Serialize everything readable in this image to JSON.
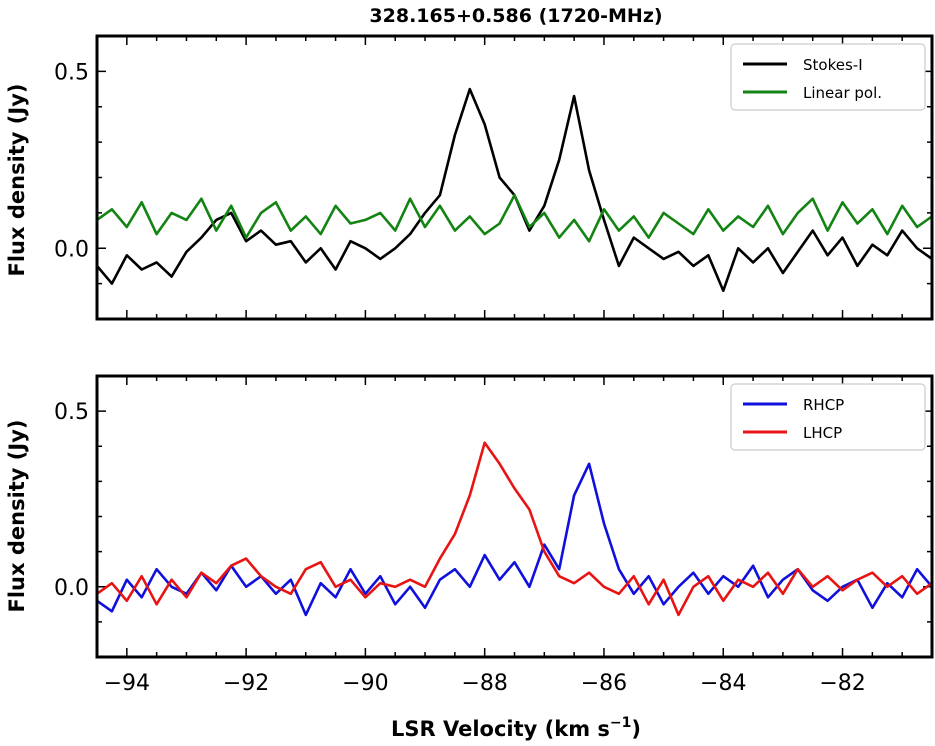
{
  "figure": {
    "title": "328.165+0.586 (1720-MHz)",
    "xlabel": "LSR Velocity (km s",
    "xlabel_sup": "−1",
    "xlabel_close": ")"
  },
  "chart_data": [
    {
      "type": "line",
      "ylabel": "Flux density (Jy)",
      "xlim": [
        -94.5,
        -80.5
      ],
      "ylim": [
        -0.2,
        0.6
      ],
      "yticks": [
        0.0,
        0.5
      ],
      "ytick_labels": [
        "0.0",
        "0.5"
      ],
      "legend_position": "top-right",
      "series": [
        {
          "name": "Stokes-I",
          "color": "#000000",
          "x": [
            -94.5,
            -94.25,
            -94.0,
            -93.75,
            -93.5,
            -93.25,
            -93.0,
            -92.75,
            -92.5,
            -92.25,
            -92.0,
            -91.75,
            -91.5,
            -91.25,
            -91.0,
            -90.75,
            -90.5,
            -90.25,
            -90.0,
            -89.75,
            -89.5,
            -89.25,
            -89.0,
            -88.75,
            -88.5,
            -88.25,
            -88.0,
            -87.75,
            -87.5,
            -87.25,
            -87.0,
            -86.75,
            -86.5,
            -86.25,
            -86.0,
            -85.75,
            -85.5,
            -85.25,
            -85.0,
            -84.75,
            -84.5,
            -84.25,
            -84.0,
            -83.75,
            -83.5,
            -83.25,
            -83.0,
            -82.75,
            -82.5,
            -82.25,
            -82.0,
            -81.75,
            -81.5,
            -81.25,
            -81.0,
            -80.75,
            -80.5
          ],
          "y": [
            -0.05,
            -0.1,
            -0.02,
            -0.06,
            -0.04,
            -0.08,
            -0.01,
            0.03,
            0.08,
            0.1,
            0.02,
            0.05,
            0.01,
            0.02,
            -0.04,
            0.0,
            -0.06,
            0.02,
            0.0,
            -0.03,
            0.0,
            0.04,
            0.1,
            0.15,
            0.32,
            0.45,
            0.35,
            0.2,
            0.15,
            0.05,
            0.12,
            0.25,
            0.43,
            0.22,
            0.08,
            -0.05,
            0.03,
            0.0,
            -0.03,
            -0.01,
            -0.05,
            -0.02,
            -0.12,
            0.0,
            -0.04,
            0.0,
            -0.07,
            -0.01,
            0.05,
            -0.02,
            0.03,
            -0.05,
            0.01,
            -0.02,
            0.05,
            0.0,
            -0.03
          ]
        },
        {
          "name": "Linear pol.",
          "color": "#138413",
          "x": [
            -94.5,
            -94.25,
            -94.0,
            -93.75,
            -93.5,
            -93.25,
            -93.0,
            -92.75,
            -92.5,
            -92.25,
            -92.0,
            -91.75,
            -91.5,
            -91.25,
            -91.0,
            -90.75,
            -90.5,
            -90.25,
            -90.0,
            -89.75,
            -89.5,
            -89.25,
            -89.0,
            -88.75,
            -88.5,
            -88.25,
            -88.0,
            -87.75,
            -87.5,
            -87.25,
            -87.0,
            -86.75,
            -86.5,
            -86.25,
            -86.0,
            -85.75,
            -85.5,
            -85.25,
            -85.0,
            -84.75,
            -84.5,
            -84.25,
            -84.0,
            -83.75,
            -83.5,
            -83.25,
            -83.0,
            -82.75,
            -82.5,
            -82.25,
            -82.0,
            -81.75,
            -81.5,
            -81.25,
            -81.0,
            -80.75,
            -80.5
          ],
          "y": [
            0.08,
            0.11,
            0.06,
            0.13,
            0.04,
            0.1,
            0.08,
            0.14,
            0.05,
            0.12,
            0.03,
            0.1,
            0.13,
            0.05,
            0.09,
            0.04,
            0.12,
            0.07,
            0.08,
            0.1,
            0.05,
            0.14,
            0.06,
            0.12,
            0.05,
            0.09,
            0.04,
            0.07,
            0.15,
            0.06,
            0.1,
            0.03,
            0.08,
            0.02,
            0.11,
            0.05,
            0.09,
            0.03,
            0.1,
            0.07,
            0.04,
            0.11,
            0.05,
            0.09,
            0.06,
            0.12,
            0.04,
            0.1,
            0.14,
            0.05,
            0.13,
            0.07,
            0.11,
            0.04,
            0.12,
            0.06,
            0.09
          ]
        }
      ]
    },
    {
      "type": "line",
      "ylabel": "Flux density (Jy)",
      "xlabel": "LSR Velocity (km s⁻¹)",
      "xlim": [
        -94.5,
        -80.5
      ],
      "ylim": [
        -0.2,
        0.6
      ],
      "xticks": [
        -94,
        -92,
        -90,
        -88,
        -86,
        -84,
        -82
      ],
      "xtick_labels": [
        "−94",
        "−92",
        "−90",
        "−88",
        "−86",
        "−84",
        "−82"
      ],
      "yticks": [
        0.0,
        0.5
      ],
      "ytick_labels": [
        "0.0",
        "0.5"
      ],
      "legend_position": "top-right",
      "series": [
        {
          "name": "RHCP",
          "color": "#1010dd",
          "x": [
            -94.5,
            -94.25,
            -94.0,
            -93.75,
            -93.5,
            -93.25,
            -93.0,
            -92.75,
            -92.5,
            -92.25,
            -92.0,
            -91.75,
            -91.5,
            -91.25,
            -91.0,
            -90.75,
            -90.5,
            -90.25,
            -90.0,
            -89.75,
            -89.5,
            -89.25,
            -89.0,
            -88.75,
            -88.5,
            -88.25,
            -88.0,
            -87.75,
            -87.5,
            -87.25,
            -87.0,
            -86.75,
            -86.5,
            -86.25,
            -86.0,
            -85.75,
            -85.5,
            -85.25,
            -85.0,
            -84.75,
            -84.5,
            -84.25,
            -84.0,
            -83.75,
            -83.5,
            -83.25,
            -83.0,
            -82.75,
            -82.5,
            -82.25,
            -82.0,
            -81.75,
            -81.5,
            -81.25,
            -81.0,
            -80.75,
            -80.5
          ],
          "y": [
            -0.04,
            -0.07,
            0.02,
            -0.03,
            0.05,
            0.0,
            -0.02,
            0.04,
            -0.01,
            0.06,
            0.0,
            0.03,
            -0.02,
            0.02,
            -0.08,
            0.01,
            -0.03,
            0.05,
            -0.02,
            0.03,
            -0.05,
            0.0,
            -0.06,
            0.02,
            0.05,
            0.0,
            0.09,
            0.02,
            0.07,
            0.0,
            0.12,
            0.05,
            0.26,
            0.35,
            0.18,
            0.05,
            -0.02,
            0.03,
            -0.05,
            0.0,
            0.04,
            -0.02,
            0.03,
            0.0,
            0.06,
            -0.03,
            0.02,
            0.05,
            -0.01,
            -0.04,
            0.0,
            0.02,
            -0.06,
            0.01,
            -0.03,
            0.05,
            0.0
          ]
        },
        {
          "name": "LHCP",
          "color": "#e81414",
          "x": [
            -94.5,
            -94.25,
            -94.0,
            -93.75,
            -93.5,
            -93.25,
            -93.0,
            -92.75,
            -92.5,
            -92.25,
            -92.0,
            -91.75,
            -91.5,
            -91.25,
            -91.0,
            -90.75,
            -90.5,
            -90.25,
            -90.0,
            -89.75,
            -89.5,
            -89.25,
            -89.0,
            -88.75,
            -88.5,
            -88.25,
            -88.0,
            -87.75,
            -87.5,
            -87.25,
            -87.0,
            -86.75,
            -86.5,
            -86.25,
            -86.0,
            -85.75,
            -85.5,
            -85.25,
            -85.0,
            -84.75,
            -84.5,
            -84.25,
            -84.0,
            -83.75,
            -83.5,
            -83.25,
            -83.0,
            -82.75,
            -82.5,
            -82.25,
            -82.0,
            -81.75,
            -81.5,
            -81.25,
            -81.0,
            -80.75,
            -80.5
          ],
          "y": [
            -0.02,
            0.01,
            -0.04,
            0.03,
            -0.05,
            0.02,
            -0.03,
            0.04,
            0.01,
            0.06,
            0.08,
            0.03,
            0.0,
            -0.02,
            0.05,
            0.07,
            0.0,
            0.02,
            -0.03,
            0.01,
            0.0,
            0.02,
            0.0,
            0.08,
            0.15,
            0.26,
            0.41,
            0.35,
            0.28,
            0.22,
            0.1,
            0.03,
            0.01,
            0.04,
            0.0,
            -0.02,
            0.03,
            -0.05,
            0.02,
            -0.08,
            0.0,
            0.03,
            -0.04,
            0.02,
            0.0,
            0.04,
            -0.02,
            0.05,
            0.0,
            0.03,
            -0.01,
            0.02,
            0.04,
            0.0,
            0.03,
            -0.02,
            0.01
          ]
        }
      ]
    }
  ]
}
